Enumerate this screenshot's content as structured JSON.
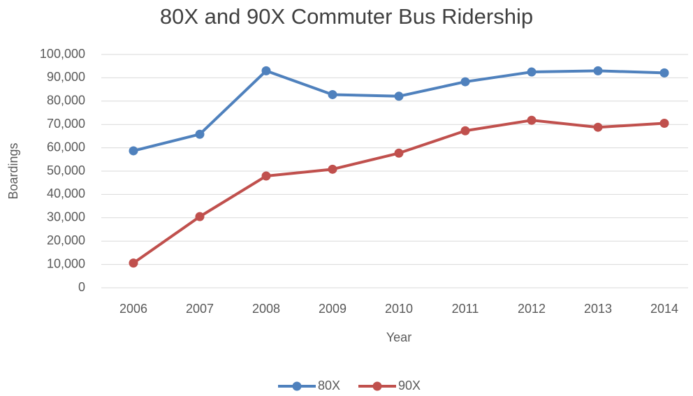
{
  "chart_data": {
    "type": "line",
    "title": "80X and 90X Commuter Bus Ridership",
    "x_label": "Year",
    "y_label": "Boardings",
    "categories": [
      "2006",
      "2007",
      "2008",
      "2009",
      "2010",
      "2011",
      "2012",
      "2013",
      "2014"
    ],
    "series": [
      {
        "name": "80X",
        "color": "#4f81bd",
        "values": [
          58700,
          65800,
          93000,
          82800,
          82100,
          88300,
          92500,
          93000,
          92100
        ]
      },
      {
        "name": "90X",
        "color": "#c0504d",
        "values": [
          10600,
          30500,
          47900,
          50800,
          57700,
          67300,
          71800,
          68800,
          70500
        ]
      }
    ],
    "ylim": [
      0,
      100000
    ],
    "yticks": [
      0,
      {
        "value": 10000,
        "label": "10,000"
      },
      {
        "value": 20000,
        "label": "20,000"
      },
      {
        "value": 30000,
        "label": "30,000"
      },
      {
        "value": 40000,
        "label": "40,000"
      },
      {
        "value": 50000,
        "label": "50,000"
      },
      {
        "value": 60000,
        "label": "60,000"
      },
      {
        "value": 70000,
        "label": "70,000"
      },
      {
        "value": 80000,
        "label": "80,000"
      },
      {
        "value": 90000,
        "label": "90,000"
      },
      {
        "value": 100000,
        "label": "100,000"
      }
    ],
    "grid": true,
    "legend": "bottom"
  }
}
